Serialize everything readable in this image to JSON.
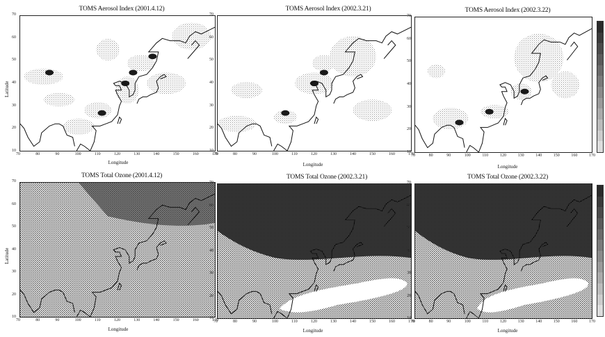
{
  "panels": [
    {
      "title": "TOMS Aerosol Index (2001.4.12)",
      "type": "aerosol"
    },
    {
      "title": "TOMS Aerosol Index (2002.3.21)",
      "type": "aerosol"
    },
    {
      "title": "TOMS Aerosol Index (2002.3.22)",
      "type": "aerosol"
    },
    {
      "title": "TOMS Total Ozone (2001.4.12)",
      "type": "ozone"
    },
    {
      "title": "TOMS Total Ozone (2002.3.21)",
      "type": "ozone"
    },
    {
      "title": "TOMS Total Ozone (2002.3.22)",
      "type": "ozone"
    }
  ],
  "axes": {
    "xlabel": "Longitude",
    "ylabel": "Latitude",
    "xlim": [
      70,
      170
    ],
    "ylim": [
      10,
      70
    ],
    "xticks": [
      "70",
      "80",
      "90",
      "100",
      "110",
      "120",
      "130",
      "140",
      "150",
      "160",
      "170"
    ],
    "yticks": [
      "10",
      "20",
      "30",
      "40",
      "50",
      "60",
      "70"
    ]
  },
  "colors": {
    "stipple_light": "#d8d8d8",
    "stipple_dark": "#3a3a3a",
    "frame": "#222222"
  }
}
